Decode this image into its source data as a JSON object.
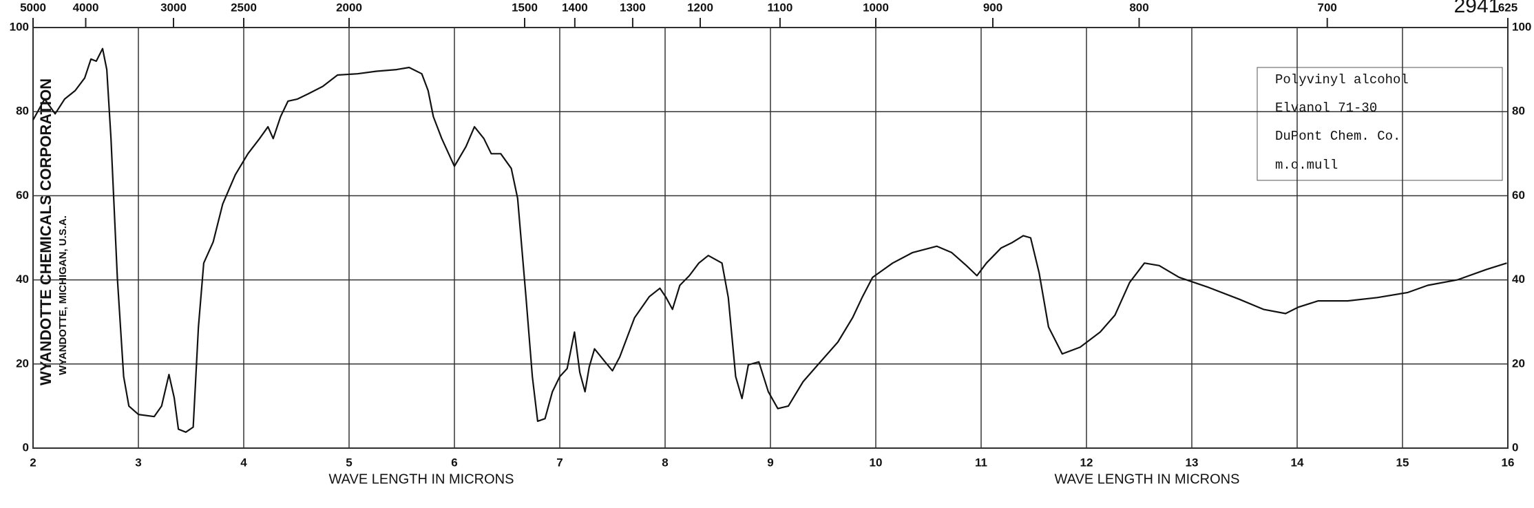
{
  "chart_data": {
    "type": "line",
    "spectrum_number": "2941",
    "company": [
      "WYANDOTTE CHEMICALS CORPORATION",
      "WYANDOTTE, MICHIGAN, U.S.A."
    ],
    "sample_info": [
      "Polyvinyl alcohol",
      "Elvanol 71-30",
      "DuPont Chem. Co.",
      "m.o.mull"
    ],
    "x_label": [
      "WAVE LENGTH IN MICRONS",
      "WAVE LENGTH IN MICRONS"
    ],
    "x": [
      2.0,
      2.11,
      2.21,
      2.3,
      2.4,
      2.49,
      2.55,
      2.6,
      2.66,
      2.7,
      2.74,
      2.8,
      2.86,
      2.91,
      3.0,
      3.15,
      3.22,
      3.29,
      3.34,
      3.38,
      3.45,
      3.52,
      3.57,
      3.62,
      3.71,
      3.8,
      3.92,
      4.04,
      4.15,
      4.23,
      4.28,
      4.35,
      4.42,
      4.51,
      4.61,
      4.75,
      4.89,
      5.08,
      5.26,
      5.45,
      5.57,
      5.69,
      5.75,
      5.8,
      5.88,
      6.0,
      6.11,
      6.19,
      6.28,
      6.35,
      6.44,
      6.54,
      6.6,
      6.68,
      6.74,
      6.79,
      6.86,
      6.93,
      7.0,
      7.07,
      7.14,
      7.19,
      7.24,
      7.28,
      7.33,
      7.43,
      7.5,
      7.57,
      7.71,
      7.85,
      7.95,
      8.01,
      8.07,
      8.14,
      8.23,
      8.32,
      8.41,
      8.54,
      8.6,
      8.67,
      8.73,
      8.79,
      8.89,
      8.98,
      9.07,
      9.17,
      9.31,
      9.45,
      9.64,
      9.78,
      9.87,
      9.97,
      10.16,
      10.35,
      10.58,
      10.72,
      10.86,
      10.96,
      11.05,
      11.19,
      11.29,
      11.4,
      11.47,
      11.55,
      11.64,
      11.77,
      11.94,
      12.13,
      12.27,
      12.41,
      12.55,
      12.69,
      12.88,
      13.16,
      13.45,
      13.68,
      13.89,
      14.01,
      14.2,
      14.48,
      14.76,
      15.05,
      15.24,
      15.52,
      15.8,
      15.99
    ],
    "values": [
      78,
      83,
      79.5,
      83,
      85,
      88,
      92.5,
      92,
      95,
      90,
      73.6,
      40.6,
      17,
      10,
      8,
      7.5,
      10,
      17.5,
      12,
      4.5,
      3.8,
      5,
      28.8,
      44,
      49,
      58,
      65,
      70,
      73.6,
      76.4,
      73.6,
      78.8,
      82.5,
      83,
      84.2,
      86,
      88.7,
      89,
      89.6,
      90,
      90.5,
      89,
      85,
      78.8,
      73.6,
      67,
      71.7,
      76.4,
      73.6,
      70,
      70,
      66.5,
      59.4,
      35.8,
      17,
      6.4,
      7,
      13.4,
      17,
      18.9,
      27.6,
      18,
      13.4,
      19.3,
      23.6,
      20.5,
      18.4,
      21.7,
      31,
      36,
      38,
      35.8,
      33,
      38.7,
      41,
      44,
      45.8,
      44,
      35.8,
      17,
      11.8,
      19.8,
      20.5,
      13.4,
      9.4,
      10,
      15.8,
      19.8,
      25.2,
      31,
      35.8,
      40.6,
      44,
      46.5,
      48,
      46.5,
      43.4,
      41,
      44,
      47.6,
      48.8,
      50.5,
      50,
      41.7,
      28.8,
      22.4,
      24,
      27.6,
      31.6,
      39.4,
      44,
      43.4,
      40.6,
      38.2,
      35.4,
      33,
      32,
      33.5,
      35,
      35,
      35.8,
      37,
      38.7,
      40,
      42.5,
      44
    ],
    "color": "#111111",
    "xlim": [
      2,
      16
    ],
    "ylim": [
      0,
      100
    ],
    "xticks": [
      2,
      3,
      4,
      5,
      6,
      7,
      8,
      9,
      10,
      11,
      12,
      13,
      14,
      15,
      16
    ],
    "yticks": [
      0,
      20,
      40,
      60,
      80,
      100
    ],
    "top_ticks": [
      5000,
      4000,
      3000,
      2500,
      2000,
      1500,
      1400,
      1300,
      1200,
      1100,
      1000,
      900,
      800,
      700,
      625
    ],
    "grid": true
  }
}
